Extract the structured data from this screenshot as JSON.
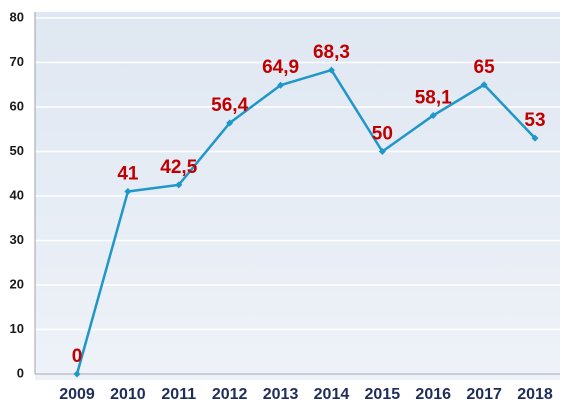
{
  "chart_data": {
    "type": "line",
    "categories": [
      "2009",
      "2010",
      "2011",
      "2012",
      "2013",
      "2014",
      "2015",
      "2016",
      "2017",
      "2018"
    ],
    "series": [
      {
        "color": "#1f97c9",
        "values": [
          0,
          41,
          42.5,
          56.4,
          64.9,
          68.3,
          50,
          58.1,
          65,
          53
        ],
        "value_labels": [
          "0",
          "41",
          "42,5",
          "56,4",
          "64,9",
          "68,3",
          "50",
          "58,1",
          "65",
          "53"
        ]
      }
    ],
    "ylim": [
      0,
      80
    ],
    "yticks": [
      0,
      10,
      20,
      30,
      40,
      50,
      60,
      70,
      80
    ],
    "grid": true,
    "label_color": "#c00000"
  }
}
